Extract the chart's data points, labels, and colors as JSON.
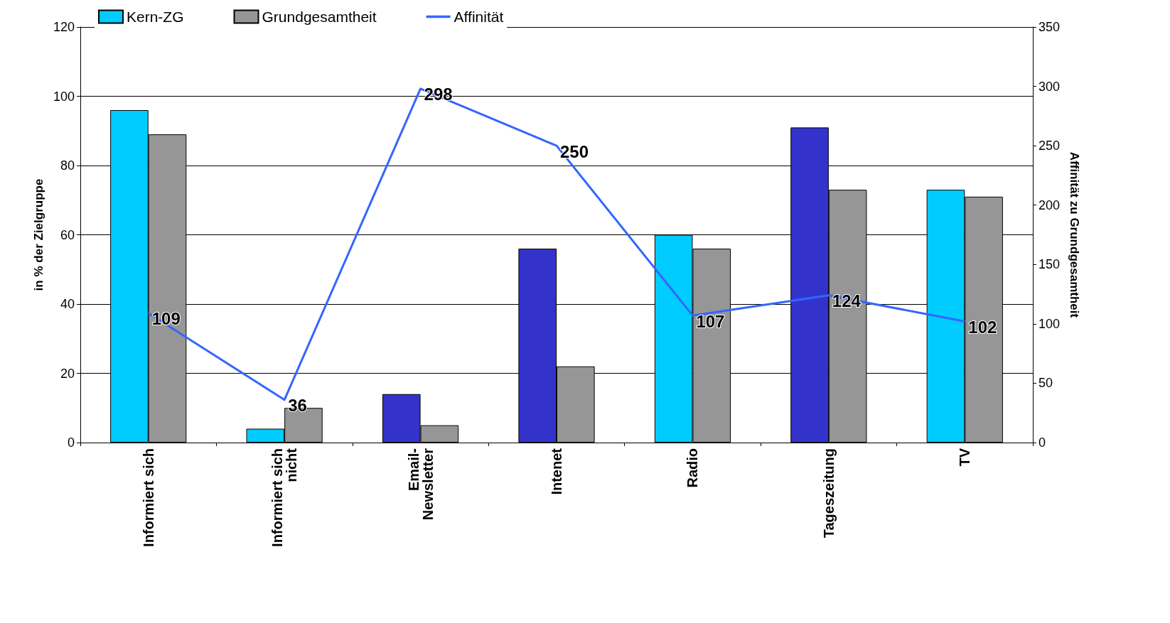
{
  "chart_data": {
    "type": "bar",
    "categories": [
      "Informiert sich",
      "Informiert sich nicht",
      "Email-Newsletter",
      "Intenet",
      "Radio",
      "Tageszeitung",
      "TV"
    ],
    "series": [
      {
        "name": "Kern-ZG",
        "color": "#00ccff",
        "colors": [
          "#00ccff",
          "#00ccff",
          "#3333cc",
          "#3333cc",
          "#00ccff",
          "#3333cc",
          "#00ccff"
        ],
        "values": [
          96,
          4,
          14,
          56,
          60,
          91,
          73
        ]
      },
      {
        "name": "Grundgesamtheit",
        "color": "#969696",
        "values": [
          89,
          10,
          5,
          22,
          56,
          73,
          71
        ]
      },
      {
        "name": "Affinität",
        "type": "line",
        "axis": "y2",
        "color": "#3366ff",
        "marker": "none",
        "data_labels": true,
        "values": [
          109,
          36,
          298,
          250,
          107,
          124,
          102
        ]
      }
    ],
    "ylabel": "in % der Zielgruppe",
    "y2label": "Affinität zu Grundgesamtheit",
    "ylim": [
      0,
      120
    ],
    "yticks": [
      0,
      20,
      40,
      60,
      80,
      100,
      120
    ],
    "y2lim": [
      0,
      350
    ],
    "y2ticks": [
      0,
      50,
      100,
      150,
      200,
      250,
      300,
      350
    ],
    "grid": "y",
    "legend": "top left"
  }
}
